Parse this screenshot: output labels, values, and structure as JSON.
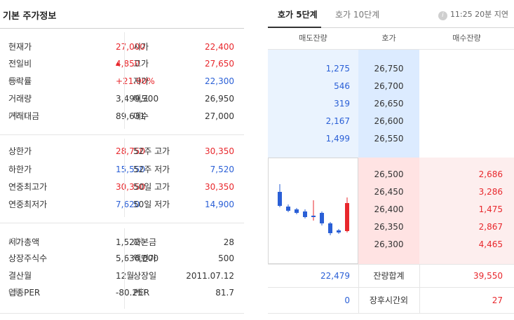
{
  "left": {
    "title": "기본 주가정보",
    "rows": [
      {
        "l1": "현재가",
        "u1": "",
        "v1": "27,000",
        "c1": "red",
        "l2": "시가",
        "u2": "",
        "v2": "22,400",
        "c2": "red"
      },
      {
        "l1": "전일비",
        "u1": "",
        "v1": "4,850",
        "c1": "red",
        "tri": "▲",
        "l2": "고가",
        "u2": "",
        "v2": "27,650",
        "c2": "red"
      },
      {
        "l1": "등락률",
        "u1": "(%)",
        "v1": "+21.90%",
        "c1": "red",
        "l2": "저가",
        "u2": "",
        "v2": "22,300",
        "c2": "blue"
      },
      {
        "l1": "거래량",
        "u1": "",
        "v1": "3,499,300",
        "c1": "blk",
        "l2": "매도",
        "u2": "",
        "v2": "26,950",
        "c2": "blk"
      },
      {
        "l1": "거래대금",
        "u1": "(백만)",
        "v1": "89,631",
        "c1": "blk",
        "l2": "매수",
        "u2": "",
        "v2": "27,000",
        "c2": "blk"
      },
      {
        "l1": "상한가",
        "u1": "",
        "v1": "28,750",
        "c1": "red",
        "l2": "52주 고가",
        "u2": "",
        "v2": "30,350",
        "c2": "red"
      },
      {
        "l1": "하한가",
        "u1": "",
        "v1": "15,550",
        "c1": "blue",
        "l2": "52주 저가",
        "u2": "",
        "v2": "7,520",
        "c2": "blue"
      },
      {
        "l1": "연중최고가",
        "u1": "",
        "v1": "30,350",
        "c1": "red",
        "l2": "50일 고가",
        "u2": "",
        "v2": "30,350",
        "c2": "red"
      },
      {
        "l1": "연중최저가",
        "u1": "",
        "v1": "7,620",
        "c1": "blue",
        "l2": "50일 저가",
        "u2": "",
        "v2": "14,900",
        "c2": "blue"
      },
      {
        "l1": "시가총액",
        "u1": "(억)",
        "v1": "1,522",
        "c1": "blk",
        "l2": "자본금",
        "u2": "(억)",
        "v2": "28",
        "c2": "blk"
      },
      {
        "l1": "상장주식수",
        "u1": "",
        "v1": "5,636,000",
        "c1": "blk",
        "l2": "액면가",
        "u2": "",
        "v2": "500",
        "c2": "blk"
      },
      {
        "l1": "결산월",
        "u1": "",
        "v1": "12월",
        "c1": "blk",
        "l2": "상장일",
        "u2": "",
        "v2": "2011.07.12",
        "c2": "blk"
      },
      {
        "l1": "업종PER",
        "u1": "(배)",
        "v1": "-80.25",
        "c1": "blk",
        "l2": "PER",
        "u2": "(배)",
        "v2": "81.7",
        "c2": "blk"
      }
    ]
  },
  "right": {
    "tabs": [
      "호가 5단계",
      "호가 10단계"
    ],
    "info_icon": "i",
    "delay_note": "11:25 20분 지연",
    "headers": [
      "매도잔량",
      "호가",
      "매수잔량"
    ],
    "sell": [
      {
        "qty": "1,275",
        "price": "26,750"
      },
      {
        "qty": "546",
        "price": "26,700"
      },
      {
        "qty": "319",
        "price": "26,650"
      },
      {
        "qty": "2,167",
        "price": "26,600"
      },
      {
        "qty": "1,499",
        "price": "26,550"
      }
    ],
    "buy": [
      {
        "price": "26,500",
        "qty": "2,686"
      },
      {
        "price": "26,450",
        "qty": "3,286"
      },
      {
        "price": "26,400",
        "qty": "1,475"
      },
      {
        "price": "26,350",
        "qty": "2,867"
      },
      {
        "price": "26,300",
        "qty": "4,465"
      }
    ],
    "total": {
      "sell": "22,479",
      "label": "잔량합계",
      "buy": "39,550"
    },
    "after": {
      "sell": "0",
      "label": "장후시간외",
      "buy": "27"
    },
    "colors": {
      "up": "#e8272c",
      "down": "#2a5fd6"
    }
  }
}
